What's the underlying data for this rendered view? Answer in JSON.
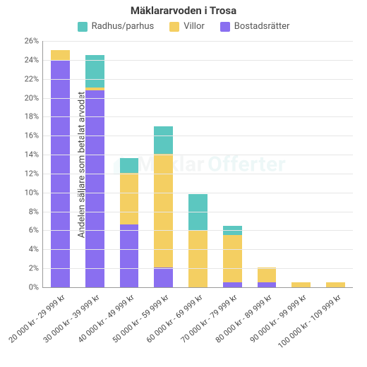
{
  "chart": {
    "type": "stacked-bar",
    "title": "Mäklararvoden i Trosa",
    "title_fontsize": 15,
    "ylabel": "Andelen säljare som betalat arvodet",
    "label_fontsize": 13,
    "ylim": [
      0,
      26
    ],
    "ytick_step": 2,
    "ytick_suffix": "%",
    "background_color": "#ffffff",
    "grid_color": "#e6e6e6",
    "axis_color": "#9a9a9a",
    "tick_font_color": "#555555",
    "bar_width": 0.55,
    "categories": [
      "20 000 kr - 29 999 kr",
      "30 000 kr - 39 999 kr",
      "40 000 kr - 49 999 kr",
      "50 000 kr - 59 999 kr",
      "60 000 kr - 69 999 kr",
      "70 000 kr - 79 999 kr",
      "80 000 kr - 89 999 kr",
      "90 000 kr - 99 999 kr",
      "100 000 kr - 109 999 kr"
    ],
    "series": [
      {
        "name": "Radhus/parhus",
        "color": "#5cc7c0"
      },
      {
        "name": "Villor",
        "color": "#f4cf62"
      },
      {
        "name": "Bostadsrätter",
        "color": "#8a6ff0"
      }
    ],
    "data": {
      "Bostadsrätter": [
        23.9,
        20.8,
        6.6,
        2.1,
        0.0,
        0.5,
        0.5,
        0.0,
        0.0
      ],
      "Villor": [
        1.1,
        0.3,
        5.5,
        12.0,
        6.0,
        5.0,
        1.6,
        0.5,
        0.5
      ],
      "Radhus/parhus": [
        0.0,
        3.4,
        1.5,
        2.9,
        3.8,
        1.0,
        0.0,
        0.0,
        0.0
      ]
    },
    "watermark": {
      "text1": "Mäklar",
      "text2": "Offerter"
    }
  }
}
